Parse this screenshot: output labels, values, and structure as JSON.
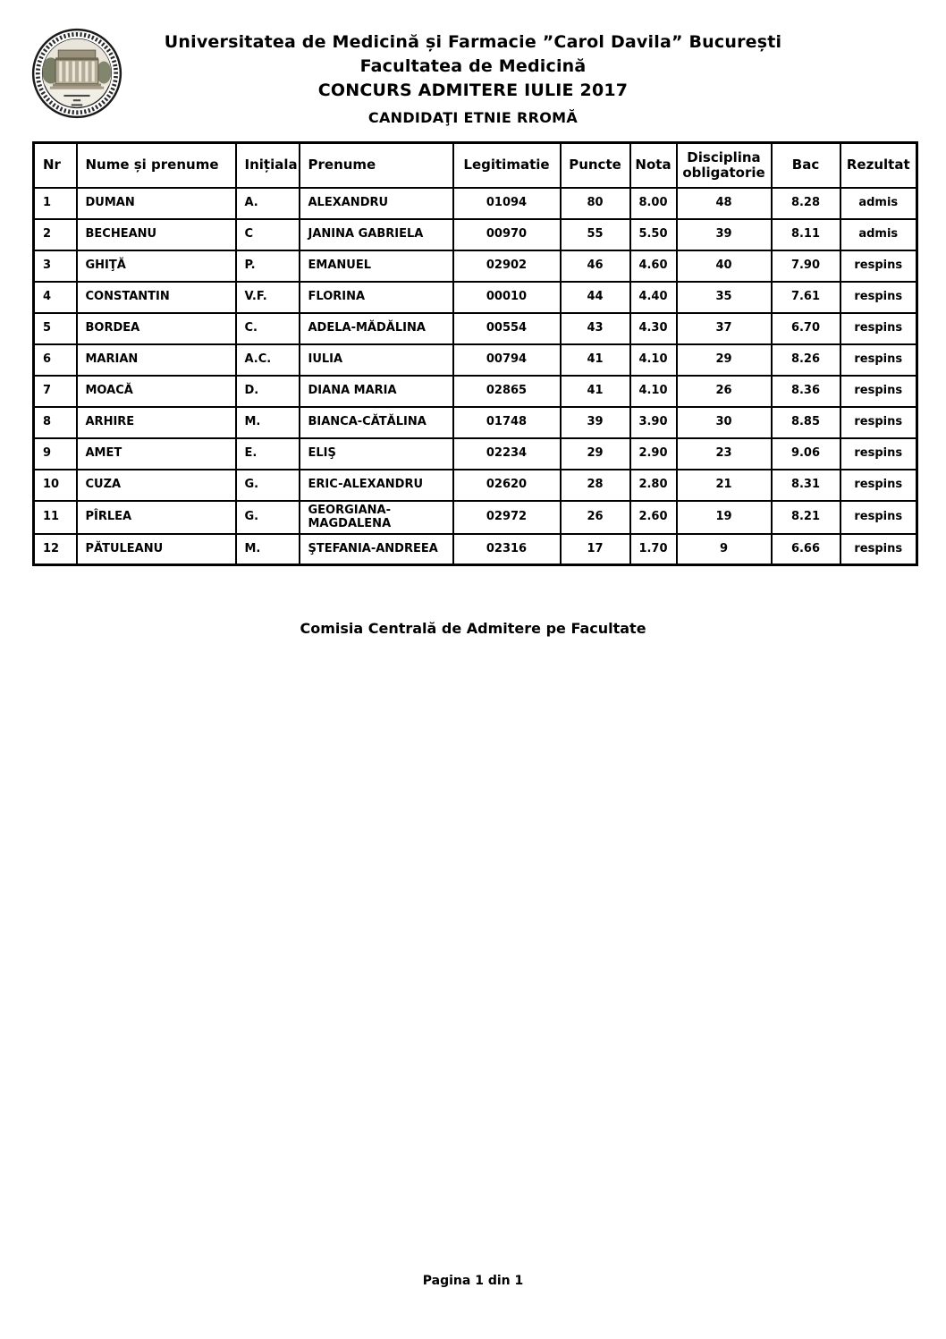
{
  "header": {
    "logo": "university-seal",
    "title_line1": "Universitatea de Medicină și Farmacie ”Carol Davila” București",
    "title_line2": "Facultatea de Medicină",
    "title_line3": "CONCURS ADMITERE IULIE 2017",
    "subtitle": "CANDIDAŢI ETNIE RROMĂ"
  },
  "table": {
    "columns": [
      {
        "key": "nr",
        "label": "Nr",
        "align": "left"
      },
      {
        "key": "nume",
        "label": "Nume și prenume",
        "align": "left"
      },
      {
        "key": "initiala",
        "label": "Inițiala",
        "align": "left"
      },
      {
        "key": "prenume",
        "label": "Prenume",
        "align": "left"
      },
      {
        "key": "legitimatie",
        "label": "Legitimatie",
        "align": "center"
      },
      {
        "key": "puncte",
        "label": "Puncte",
        "align": "center"
      },
      {
        "key": "nota",
        "label": "Nota",
        "align": "center"
      },
      {
        "key": "disciplina",
        "label": "Disciplina obligatorie",
        "align": "center"
      },
      {
        "key": "bac",
        "label": "Bac",
        "align": "center"
      },
      {
        "key": "rezultat",
        "label": "Rezultat",
        "align": "center"
      }
    ],
    "rows": [
      {
        "nr": "1",
        "nume": "DUMAN",
        "initiala": "A.",
        "prenume": "ALEXANDRU",
        "legitimatie": "01094",
        "puncte": "80",
        "nota": "8.00",
        "disciplina": "48",
        "bac": "8.28",
        "rezultat": "admis"
      },
      {
        "nr": "2",
        "nume": "BECHEANU",
        "initiala": "C",
        "prenume": "JANINA GABRIELA",
        "legitimatie": "00970",
        "puncte": "55",
        "nota": "5.50",
        "disciplina": "39",
        "bac": "8.11",
        "rezultat": "admis"
      },
      {
        "nr": "3",
        "nume": "GHIŢĂ",
        "initiala": "P.",
        "prenume": "EMANUEL",
        "legitimatie": "02902",
        "puncte": "46",
        "nota": "4.60",
        "disciplina": "40",
        "bac": "7.90",
        "rezultat": "respins"
      },
      {
        "nr": "4",
        "nume": "CONSTANTIN",
        "initiala": "V.F.",
        "prenume": "FLORINA",
        "legitimatie": "00010",
        "puncte": "44",
        "nota": "4.40",
        "disciplina": "35",
        "bac": "7.61",
        "rezultat": "respins"
      },
      {
        "nr": "5",
        "nume": "BORDEA",
        "initiala": "C.",
        "prenume": "ADELA-MĂDĂLINA",
        "legitimatie": "00554",
        "puncte": "43",
        "nota": "4.30",
        "disciplina": "37",
        "bac": "6.70",
        "rezultat": "respins"
      },
      {
        "nr": "6",
        "nume": "MARIAN",
        "initiala": "A.C.",
        "prenume": "IULIA",
        "legitimatie": "00794",
        "puncte": "41",
        "nota": "4.10",
        "disciplina": "29",
        "bac": "8.26",
        "rezultat": "respins"
      },
      {
        "nr": "7",
        "nume": "MOACĂ",
        "initiala": "D.",
        "prenume": "DIANA MARIA",
        "legitimatie": "02865",
        "puncte": "41",
        "nota": "4.10",
        "disciplina": "26",
        "bac": "8.36",
        "rezultat": "respins"
      },
      {
        "nr": "8",
        "nume": "ARHIRE",
        "initiala": "M.",
        "prenume": "BIANCA-CĂTĂLINA",
        "legitimatie": "01748",
        "puncte": "39",
        "nota": "3.90",
        "disciplina": "30",
        "bac": "8.85",
        "rezultat": "respins"
      },
      {
        "nr": "9",
        "nume": "AMET",
        "initiala": "E.",
        "prenume": "ELIŞ",
        "legitimatie": "02234",
        "puncte": "29",
        "nota": "2.90",
        "disciplina": "23",
        "bac": "9.06",
        "rezultat": "respins"
      },
      {
        "nr": "10",
        "nume": "CUZA",
        "initiala": "G.",
        "prenume": "ERIC-ALEXANDRU",
        "legitimatie": "02620",
        "puncte": "28",
        "nota": "2.80",
        "disciplina": "21",
        "bac": "8.31",
        "rezultat": "respins"
      },
      {
        "nr": "11",
        "nume": "PÎRLEA",
        "initiala": "G.",
        "prenume": "GEORGIANA-\nMAGDALENA",
        "legitimatie": "02972",
        "puncte": "26",
        "nota": "2.60",
        "disciplina": "19",
        "bac": "8.21",
        "rezultat": "respins"
      },
      {
        "nr": "12",
        "nume": "PĂTULEANU",
        "initiala": "M.",
        "prenume": "ŞTEFANIA-ANDREEA",
        "legitimatie": "02316",
        "puncte": "17",
        "nota": "1.70",
        "disciplina": "9",
        "bac": "6.66",
        "rezultat": "respins"
      }
    ]
  },
  "signature": "Comisia Centrală de Admitere pe Facultate",
  "footer": {
    "page_label": "Pagina 1 din 1"
  }
}
